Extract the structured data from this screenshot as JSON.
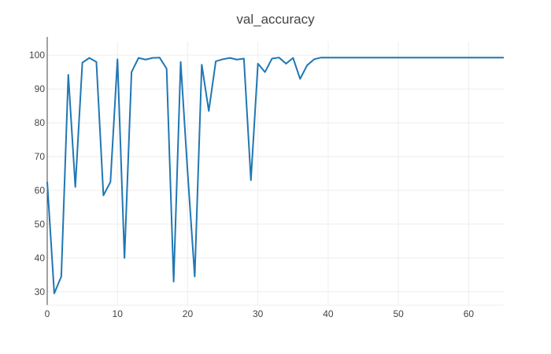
{
  "chart_data": {
    "type": "line",
    "title": "val_accuracy",
    "xlabel": "",
    "ylabel": "",
    "xlim": [
      0,
      65
    ],
    "ylim": [
      26,
      104
    ],
    "x_ticks": [
      0,
      10,
      20,
      30,
      40,
      50,
      60
    ],
    "y_ticks": [
      30,
      40,
      50,
      60,
      70,
      80,
      90,
      100
    ],
    "grid": true,
    "colors": {
      "series": "#1f77b4"
    },
    "series": [
      {
        "x": [
          0,
          1,
          2,
          3,
          4,
          5,
          6,
          7,
          8,
          9,
          10,
          11,
          12,
          13,
          14,
          15,
          16,
          17,
          18,
          19,
          20,
          21,
          22,
          23,
          24,
          25,
          26,
          27,
          28,
          29,
          30,
          31,
          32,
          33,
          34,
          35,
          36,
          37,
          38,
          39,
          40,
          41,
          42,
          43,
          44,
          45,
          46,
          47,
          48,
          49,
          50,
          51,
          52,
          53,
          54,
          55,
          56,
          57,
          58,
          59,
          60,
          61,
          62,
          63,
          64,
          65
        ],
        "values": [
          62.5,
          29.5,
          34.5,
          94.2,
          61.0,
          97.8,
          99.2,
          98.0,
          58.5,
          62.5,
          98.8,
          40.0,
          95.0,
          99.2,
          98.7,
          99.2,
          99.3,
          96.0,
          33.0,
          98.0,
          65.0,
          34.5,
          97.2,
          83.5,
          98.2,
          98.8,
          99.2,
          98.7,
          99.0,
          63.0,
          97.5,
          95.0,
          99.0,
          99.3,
          97.5,
          99.2,
          93.0,
          97.0,
          98.8,
          99.3,
          99.3,
          99.3,
          99.3,
          99.3,
          99.3,
          99.3,
          99.3,
          99.3,
          99.3,
          99.3,
          99.3,
          99.3,
          99.3,
          99.3,
          99.3,
          99.3,
          99.3,
          99.3,
          99.3,
          99.3,
          99.3,
          99.3,
          99.3,
          99.3,
          99.3,
          99.3
        ]
      }
    ]
  }
}
